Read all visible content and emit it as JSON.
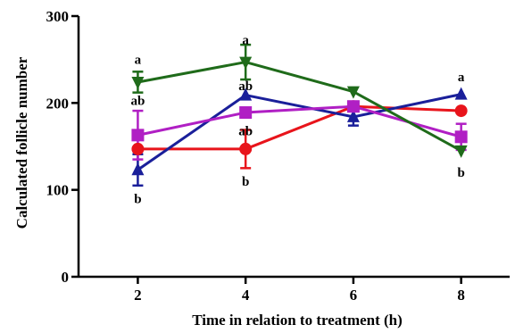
{
  "chart_data": {
    "type": "line",
    "title": "",
    "xlabel": "Time in relation to treatment (h)",
    "ylabel": "Calculated follicle number",
    "x": [
      2,
      4,
      6,
      8
    ],
    "x_ticks": [
      2,
      4,
      6,
      8
    ],
    "xlim": [
      0.9,
      8.9
    ],
    "ylim": [
      0,
      300
    ],
    "y_ticks": [
      0,
      100,
      200,
      300
    ],
    "grid": false,
    "legend": "none",
    "series": [
      {
        "color": "#e8141b",
        "marker": "circle",
        "values": [
          147,
          147,
          196,
          191
        ],
        "errors": [
          0,
          22,
          0,
          0
        ]
      },
      {
        "color": "#1a1f9a",
        "marker": "triangle-up",
        "values": [
          123,
          209,
          184,
          210
        ],
        "errors": [
          18,
          0,
          10,
          0
        ]
      },
      {
        "color": "#b01fc4",
        "marker": "square",
        "values": [
          163,
          189,
          196,
          161
        ],
        "errors": [
          28,
          0,
          0,
          15
        ]
      },
      {
        "color": "#1f6b1a",
        "marker": "triangle-down",
        "values": [
          224,
          247,
          213,
          145
        ],
        "errors": [
          12,
          20,
          0,
          0
        ]
      }
    ],
    "annotations": [
      {
        "text": "a",
        "x": 2,
        "y": 250
      },
      {
        "text": "ab",
        "x": 2,
        "y": 203
      },
      {
        "text": "b",
        "x": 2,
        "y": 90
      },
      {
        "text": "a",
        "x": 4,
        "y": 273
      },
      {
        "text": "ab",
        "x": 4,
        "y": 220
      },
      {
        "text": "ab",
        "x": 4,
        "y": 168
      },
      {
        "text": "b",
        "x": 4,
        "y": 110
      },
      {
        "text": "a",
        "x": 8,
        "y": 230
      },
      {
        "text": "b",
        "x": 8,
        "y": 120
      }
    ]
  }
}
